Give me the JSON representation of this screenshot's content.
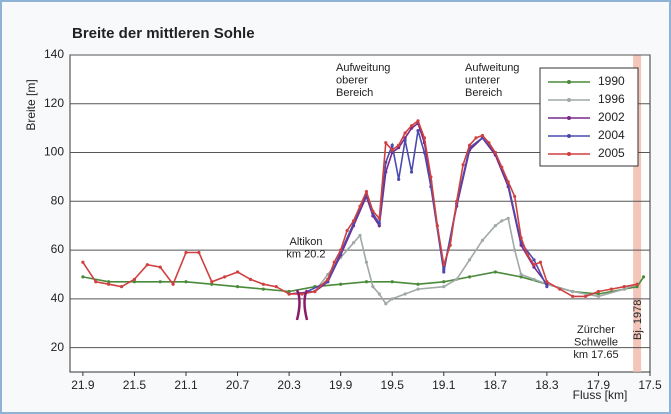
{
  "chart_data": {
    "type": "line",
    "title": "Breite der mittleren Sohle",
    "y_label": "Breite [m]",
    "x_label": "Fluss [km]",
    "xlim": [
      22.0,
      17.5
    ],
    "xticks": [
      21.9,
      21.5,
      21.1,
      20.7,
      20.3,
      19.9,
      19.5,
      19.1,
      18.7,
      18.3,
      17.9,
      17.5
    ],
    "ylim": [
      10,
      140
    ],
    "yticks": [
      20,
      40,
      60,
      80,
      100,
      120,
      140
    ],
    "grid": true,
    "legend": "upper right",
    "annotations": [
      {
        "lines": [
          "Aufweitung",
          "oberer",
          "Bereich"
        ]
      },
      {
        "lines": [
          "Aufweitung",
          "unterer",
          "Bereich"
        ]
      },
      {
        "lines": [
          "Altikon",
          "km 20.2"
        ]
      },
      {
        "lines": [
          "Zürcher",
          "Schwelle",
          "km 17.65"
        ]
      },
      {
        "lines": [
          "Bj. 1978"
        ]
      }
    ],
    "series": [
      {
        "name": "1990",
        "color": "#4a8a3a",
        "x": [
          21.9,
          21.7,
          21.5,
          21.3,
          21.1,
          20.9,
          20.7,
          20.5,
          20.3,
          20.1,
          19.9,
          19.7,
          19.5,
          19.3,
          19.1,
          18.9,
          18.7,
          18.5,
          18.3,
          18.1,
          17.9,
          17.7,
          17.6,
          17.55
        ],
        "values": [
          49,
          47,
          47,
          47,
          47,
          46,
          45,
          44,
          43,
          45,
          46,
          47,
          47,
          46,
          47,
          49,
          51,
          49,
          46,
          43,
          42,
          44,
          45,
          49
        ]
      },
      {
        "name": "1996",
        "color": "#a0a8a8",
        "x": [
          20.3,
          20.1,
          20.0,
          19.9,
          19.8,
          19.75,
          19.7,
          19.65,
          19.6,
          19.55,
          19.5,
          19.4,
          19.3,
          19.1,
          19.0,
          18.9,
          18.8,
          18.7,
          18.65,
          18.6,
          18.55,
          18.5,
          18.4,
          18.3,
          18.1,
          17.9,
          17.7,
          17.6
        ],
        "values": [
          42,
          43,
          50,
          57,
          63,
          66,
          55,
          45,
          42,
          38,
          40,
          42,
          44,
          45,
          48,
          56,
          64,
          70,
          72,
          73,
          60,
          50,
          48,
          46,
          43,
          41,
          44,
          46
        ]
      },
      {
        "name": "2002",
        "color": "#7a2a8a",
        "x": [
          20.3,
          20.1,
          20.0,
          19.9,
          19.8,
          19.7,
          19.65,
          19.6,
          19.55,
          19.5,
          19.45,
          19.4,
          19.35,
          19.3,
          19.25,
          19.2,
          19.1,
          19.0,
          18.9,
          18.8,
          18.7,
          18.6,
          18.5,
          18.4,
          18.3
        ],
        "values": [
          42,
          43,
          47,
          58,
          70,
          82,
          74,
          70,
          92,
          100,
          102,
          106,
          110,
          112,
          104,
          88,
          52,
          78,
          101,
          106,
          99,
          86,
          62,
          53,
          46
        ]
      },
      {
        "name": "2004",
        "color": "#4a4ab0",
        "x": [
          20.2,
          20.0,
          19.9,
          19.8,
          19.7,
          19.65,
          19.6,
          19.55,
          19.5,
          19.45,
          19.4,
          19.35,
          19.3,
          19.25,
          19.2,
          19.1,
          19.0,
          18.9,
          18.8,
          18.7,
          18.6,
          18.5,
          18.4,
          18.3
        ],
        "values": [
          42,
          47,
          59,
          71,
          83,
          75,
          71,
          96,
          103,
          89,
          105,
          92,
          109,
          100,
          86,
          51,
          79,
          102,
          106,
          100,
          87,
          63,
          56,
          45
        ]
      },
      {
        "name": "2005",
        "color": "#d04040",
        "x": [
          21.9,
          21.8,
          21.7,
          21.6,
          21.5,
          21.4,
          21.3,
          21.2,
          21.1,
          21.0,
          20.9,
          20.8,
          20.7,
          20.6,
          20.5,
          20.4,
          20.3,
          20.2,
          20.1,
          20.0,
          19.95,
          19.9,
          19.85,
          19.8,
          19.75,
          19.7,
          19.65,
          19.6,
          19.55,
          19.5,
          19.45,
          19.4,
          19.35,
          19.3,
          19.25,
          19.2,
          19.15,
          19.1,
          19.05,
          19.0,
          18.95,
          18.9,
          18.85,
          18.8,
          18.75,
          18.7,
          18.65,
          18.6,
          18.55,
          18.5,
          18.45,
          18.4,
          18.35,
          18.3,
          18.2,
          18.1,
          18.0,
          17.9,
          17.8,
          17.7,
          17.6
        ],
        "values": [
          55,
          47,
          46,
          45,
          48,
          54,
          53,
          46,
          59,
          59,
          47,
          49,
          51,
          48,
          46,
          45,
          42,
          42,
          43,
          48,
          55,
          60,
          68,
          72,
          78,
          84,
          76,
          73,
          104,
          101,
          103,
          108,
          111,
          113,
          106,
          90,
          70,
          54,
          62,
          80,
          95,
          103,
          106,
          107,
          104,
          100,
          94,
          88,
          82,
          65,
          58,
          54,
          55,
          47,
          44,
          41,
          41,
          43,
          44,
          45,
          46
        ]
      }
    ]
  }
}
